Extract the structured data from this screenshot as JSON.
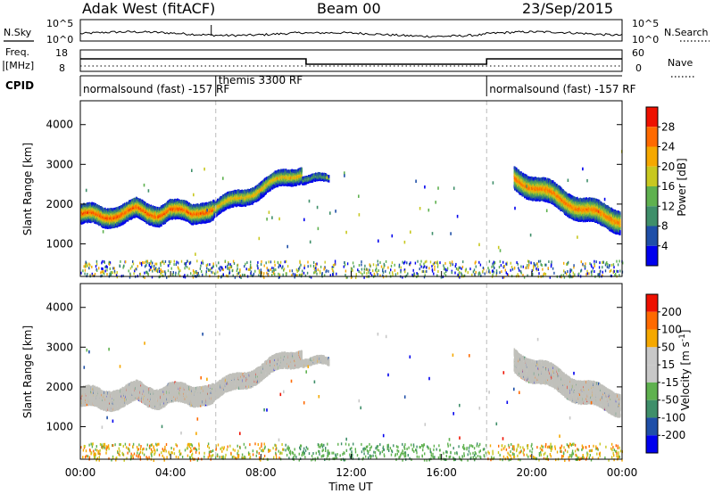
{
  "header": {
    "radar": "Adak West (fitACF)",
    "beam": "Beam 00",
    "date": "23/Sep/2015"
  },
  "noise_panel": {
    "left_label": "N.Sky",
    "right_label": "N.Search",
    "left_ticks": [
      "10^5",
      "10^0"
    ],
    "right_ticks": [
      "10^5",
      "10^0"
    ]
  },
  "freq_panel": {
    "left_label_line1": "Freq.",
    "left_label_line2": "[MHz]",
    "left_ticks": [
      "18",
      "8"
    ],
    "right_label": "Nave",
    "right_ticks": [
      "60",
      "0"
    ]
  },
  "cpid_panel": {
    "label": "CPID",
    "segments": [
      {
        "start_hour": 0,
        "end_hour": 6,
        "text": "normalsound (fast) -157 RF"
      },
      {
        "start_hour": 6,
        "end_hour": 18,
        "text": "themis 3300 RF"
      },
      {
        "start_hour": 18,
        "end_hour": 24,
        "text": "normalsound (fast) -157 RF"
      }
    ]
  },
  "colors": {
    "power_scale": [
      "#0000ee",
      "#1f4fa8",
      "#3f8f6a",
      "#5fb14f",
      "#c8c820",
      "#f5a800",
      "#ff6a00",
      "#ee1100"
    ],
    "velocity_scale": [
      "#ee1100",
      "#ff6a00",
      "#f5a800",
      "#c8c8c8",
      "#c8c8c8",
      "#5fb14f",
      "#3f8f6a",
      "#1f4fa8",
      "#0000ee"
    ],
    "ground_scatter": "#c0c0bb"
  },
  "chart_data": [
    {
      "type": "heatmap",
      "title": "Power",
      "ylabel": "Slant Range [km]",
      "xlabel": "",
      "x_unit": "hours UT",
      "xlim": [
        0,
        24
      ],
      "ylim": [
        180,
        4600
      ],
      "yticks": [
        1000,
        2000,
        3000,
        4000
      ],
      "colorbar": {
        "label": "Power [dB]",
        "ticks": [
          "4",
          "8",
          "12",
          "16",
          "20",
          "24",
          "28"
        ],
        "range": [
          0,
          30
        ]
      },
      "echo_bands": [
        {
          "t_start": 0.0,
          "t_end": 5.9,
          "range_center_km": [
            1800,
            1760,
            1700,
            1780,
            1850,
            1900,
            1780,
            1800,
            1950,
            1850,
            1750,
            1900,
            1950
          ],
          "thickness_km": 450,
          "peak_power_db": 28
        },
        {
          "t_start": 5.9,
          "t_end": 9.8,
          "range_center_km": [
            1950,
            2100,
            2300,
            2500,
            2700,
            2850
          ],
          "thickness_km": 350,
          "peak_power_db": 22
        },
        {
          "t_start": 9.8,
          "t_end": 11.0,
          "range_center_km": [
            2700,
            2650
          ],
          "thickness_km": 150,
          "peak_power_db": 12
        },
        {
          "t_start": 19.2,
          "t_end": 23.9,
          "range_center_km": [
            2700,
            2500,
            2300,
            2100,
            1900,
            1750,
            1650
          ],
          "thickness_km": 550,
          "peak_power_db": 26
        }
      ],
      "near_range_clutter": {
        "range_km": [
          180,
          600
        ],
        "t_start": 0,
        "t_end": 24
      }
    },
    {
      "type": "heatmap",
      "title": "Velocity",
      "ylabel": "Slant Range [km]",
      "xlabel": "Time UT",
      "x_unit": "hours UT",
      "xlim": [
        0,
        24
      ],
      "ylim": [
        180,
        4600
      ],
      "yticks": [
        1000,
        2000,
        3000,
        4000
      ],
      "xtick_labels": [
        "00:00",
        "04:00",
        "08:00",
        "12:00",
        "16:00",
        "20:00",
        "00:00"
      ],
      "xtick_hours": [
        0,
        4,
        8,
        12,
        16,
        20,
        24
      ],
      "colorbar": {
        "label": "Velocity [m s^-1]",
        "ticks": [
          "200",
          "100",
          "50",
          "15",
          "-15",
          "-50",
          "-100",
          "-200"
        ],
        "range": [
          -250,
          250
        ]
      },
      "note": "echo bands same as power panel, rendered as ground scatter (grey) with sparse colored points"
    }
  ]
}
